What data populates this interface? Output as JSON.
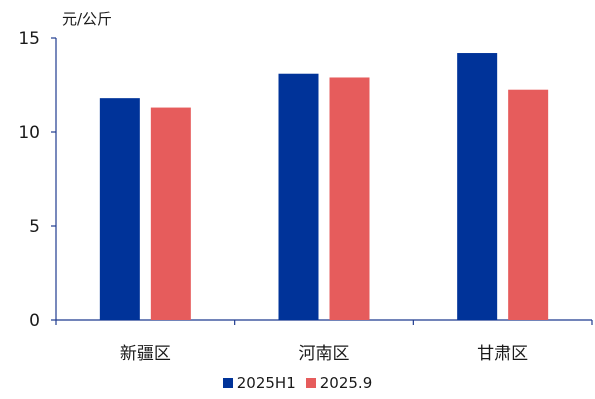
{
  "chart_data": {
    "type": "bar",
    "ylabel": "元/公斤",
    "categories": [
      "新疆区",
      "河南区",
      "甘肃区"
    ],
    "ylim": [
      0,
      15
    ],
    "yticks": [
      0,
      5,
      10,
      15
    ],
    "series": [
      {
        "name": "2025H1",
        "values": [
          11.8,
          13.1,
          14.2
        ],
        "color": "#003399"
      },
      {
        "name": "2025.9",
        "values": [
          11.3,
          12.9,
          12.25
        ],
        "color": "#e65c5c"
      }
    ],
    "grid": false,
    "legend_position": "bottom-center"
  }
}
